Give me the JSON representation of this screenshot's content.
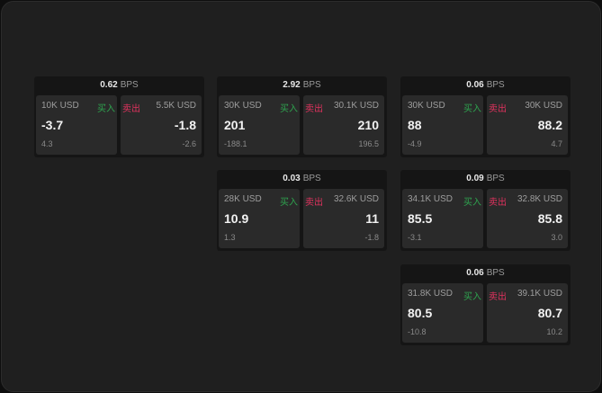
{
  "buy_label": "买入",
  "sell_label": "卖出",
  "unit": "BPS",
  "colors": {
    "buy": "#2ea44f",
    "sell": "#e0325e"
  },
  "cards": [
    {
      "col": 0,
      "row": 0,
      "spread": "0.62",
      "bid_size": "10K USD",
      "bid": "-3.7",
      "bid_change": "4.3",
      "ask_size": "5.5K USD",
      "ask": "-1.8",
      "ask_change": "-2.6"
    },
    {
      "col": 1,
      "row": 0,
      "spread": "2.92",
      "bid_size": "30K USD",
      "bid": "201",
      "bid_change": "-188.1",
      "ask_size": "30.1K USD",
      "ask": "210",
      "ask_change": "196.5"
    },
    {
      "col": 2,
      "row": 0,
      "spread": "0.06",
      "bid_size": "30K USD",
      "bid": "88",
      "bid_change": "-4.9",
      "ask_size": "30K USD",
      "ask": "88.2",
      "ask_change": "4.7"
    },
    {
      "col": 1,
      "row": 1,
      "spread": "0.03",
      "bid_size": "28K USD",
      "bid": "10.9",
      "bid_change": "1.3",
      "ask_size": "32.6K USD",
      "ask": "11",
      "ask_change": "-1.8"
    },
    {
      "col": 2,
      "row": 1,
      "spread": "0.09",
      "bid_size": "34.1K USD",
      "bid": "85.5",
      "bid_change": "-3.1",
      "ask_size": "32.8K USD",
      "ask": "85.8",
      "ask_change": "3.0"
    },
    {
      "col": 2,
      "row": 2,
      "spread": "0.06",
      "bid_size": "31.8K USD",
      "bid": "80.5",
      "bid_change": "-10.8",
      "ask_size": "39.1K USD",
      "ask": "80.7",
      "ask_change": "10.2"
    }
  ]
}
